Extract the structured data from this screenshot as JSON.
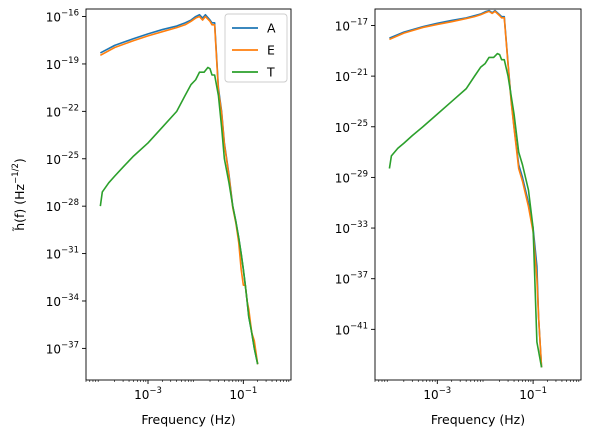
{
  "chart_data": [
    {
      "type": "line",
      "panel": "left",
      "x_scale": "log",
      "y_scale": "log",
      "xlim": [
        5e-05,
        1
      ],
      "ylim": [
        1e-39,
        3e-16
      ],
      "xlabel": "Frequency (Hz)",
      "ylabel_parts": {
        "main": "h̃(f) (Hz",
        "sup": "−1/2",
        "close": ")"
      },
      "x_ticks": [
        {
          "base": "10",
          "exp": "−3",
          "value": 0.001
        },
        {
          "base": "10",
          "exp": "−1",
          "value": 0.1
        }
      ],
      "y_ticks": [
        {
          "base": "10",
          "exp": "−16",
          "value": 1e-16
        },
        {
          "base": "10",
          "exp": "−19",
          "value": 1e-19
        },
        {
          "base": "10",
          "exp": "−22",
          "value": 1e-22
        },
        {
          "base": "10",
          "exp": "−25",
          "value": 1e-25
        },
        {
          "base": "10",
          "exp": "−28",
          "value": 1e-28
        },
        {
          "base": "10",
          "exp": "−31",
          "value": 1e-31
        },
        {
          "base": "10",
          "exp": "−34",
          "value": 1e-34
        },
        {
          "base": "10",
          "exp": "−37",
          "value": 1e-37
        }
      ],
      "legend": {
        "placement": "top-right",
        "entries": [
          "A",
          "E",
          "T"
        ]
      },
      "grid": false,
      "series": [
        {
          "name": "A",
          "color": "#1f77b4",
          "x": [
            0.0001,
            0.0002,
            0.0005,
            0.001,
            0.002,
            0.004,
            0.006,
            0.008,
            0.01,
            0.012,
            0.014,
            0.016,
            0.02,
            0.022,
            0.025,
            0.03,
            0.035,
            0.04,
            0.05,
            0.06,
            0.07,
            0.08,
            0.09,
            0.1,
            0.11,
            0.12,
            0.13,
            0.15,
            0.17,
            0.2
          ],
          "y": [
            5e-19,
            1.5e-18,
            4e-18,
            8e-18,
            1.5e-17,
            2.5e-17,
            4e-17,
            6e-17,
            1e-16,
            1.3e-16,
            8e-17,
            1.3e-16,
            6e-17,
            4e-17,
            4e-17,
            3e-21,
            1e-22,
            1e-24,
            1e-26,
            1e-28,
            1e-29,
            1e-30,
            1e-31,
            1e-32,
            1e-33,
            1e-34,
            1e-35,
            1e-36,
            1e-37,
            1e-38
          ]
        },
        {
          "name": "E",
          "color": "#ff7f0e",
          "x": [
            0.0001,
            0.0002,
            0.0005,
            0.001,
            0.002,
            0.004,
            0.006,
            0.008,
            0.01,
            0.012,
            0.014,
            0.016,
            0.02,
            0.022,
            0.025,
            0.03,
            0.035,
            0.04,
            0.05,
            0.06,
            0.07,
            0.08,
            0.09,
            0.1,
            0.11,
            0.12,
            0.13,
            0.15,
            0.17,
            0.2
          ],
          "y": [
            3.5e-19,
            1.1e-18,
            3e-18,
            6e-18,
            1.1e-17,
            2e-17,
            3e-17,
            5e-17,
            8e-17,
            1e-16,
            6e-17,
            1e-16,
            5e-17,
            3e-17,
            3e-17,
            2e-21,
            8e-23,
            8e-25,
            8e-27,
            8e-29,
            8e-30,
            5e-31,
            1e-32,
            1e-33,
            1e-33,
            1e-34,
            3e-35,
            1e-36,
            3e-37,
            1e-38
          ]
        },
        {
          "name": "T",
          "color": "#2ca02c",
          "x": [
            0.0001,
            0.00011,
            0.00015,
            0.0002,
            0.0003,
            0.0005,
            0.001,
            0.002,
            0.004,
            0.006,
            0.008,
            0.01,
            0.012,
            0.015,
            0.018,
            0.02,
            0.022,
            0.025,
            0.03,
            0.035,
            0.04,
            0.05,
            0.06,
            0.07,
            0.08,
            0.09,
            0.1,
            0.11,
            0.12,
            0.13,
            0.15,
            0.17,
            0.2
          ],
          "y": [
            1e-28,
            8e-28,
            3e-27,
            8e-27,
            3e-26,
            1.5e-25,
            1e-24,
            1e-23,
            1e-22,
            1e-21,
            5e-21,
            1e-20,
            3e-20,
            3e-20,
            6e-20,
            5e-20,
            2e-20,
            2e-20,
            1e-21,
            1e-23,
            1e-25,
            3e-27,
            1e-28,
            1e-29,
            1e-30,
            1e-31,
            1e-32,
            1e-33,
            1e-34,
            1e-35,
            1e-36,
            1e-37,
            1e-38
          ]
        }
      ]
    },
    {
      "type": "line",
      "panel": "right",
      "x_scale": "log",
      "y_scale": "log",
      "xlim": [
        5e-05,
        1
      ],
      "ylim": [
        1e-45,
        2e-16
      ],
      "xlabel": "Frequency (Hz)",
      "x_ticks": [
        {
          "base": "10",
          "exp": "−3",
          "value": 0.001
        },
        {
          "base": "10",
          "exp": "−1",
          "value": 0.1
        }
      ],
      "y_ticks": [
        {
          "base": "10",
          "exp": "−17",
          "value": 1e-17
        },
        {
          "base": "10",
          "exp": "−21",
          "value": 1e-21
        },
        {
          "base": "10",
          "exp": "−25",
          "value": 1e-25
        },
        {
          "base": "10",
          "exp": "−29",
          "value": 1e-29
        },
        {
          "base": "10",
          "exp": "−33",
          "value": 1e-33
        },
        {
          "base": "10",
          "exp": "−37",
          "value": 1e-37
        },
        {
          "base": "10",
          "exp": "−41",
          "value": 1e-41
        }
      ],
      "grid": false,
      "series": [
        {
          "name": "A",
          "color": "#1f77b4",
          "x": [
            0.0001,
            0.0002,
            0.0005,
            0.001,
            0.002,
            0.004,
            0.006,
            0.008,
            0.01,
            0.012,
            0.014,
            0.016,
            0.02,
            0.022,
            0.025,
            0.03,
            0.035,
            0.04,
            0.05,
            0.06,
            0.08,
            0.1,
            0.12,
            0.13,
            0.15
          ],
          "y": [
            1e-18,
            3e-18,
            8e-18,
            1.5e-17,
            2.5e-17,
            4e-17,
            6e-17,
            8e-17,
            1.2e-16,
            1.5e-16,
            1e-16,
            1.5e-16,
            7e-17,
            5e-17,
            5e-17,
            1e-20,
            1e-23,
            1e-25,
            1e-28,
            1e-29,
            1e-31,
            1e-33,
            1e-36,
            1e-40,
            1e-44
          ]
        },
        {
          "name": "E",
          "color": "#ff7f0e",
          "x": [
            0.0001,
            0.0002,
            0.0005,
            0.001,
            0.002,
            0.004,
            0.006,
            0.008,
            0.01,
            0.012,
            0.014,
            0.016,
            0.02,
            0.022,
            0.025,
            0.03,
            0.035,
            0.04,
            0.05,
            0.06,
            0.08,
            0.1,
            0.12,
            0.13,
            0.15
          ],
          "y": [
            8e-19,
            2.5e-18,
            7e-18,
            1.2e-17,
            2e-17,
            3.5e-17,
            5e-17,
            7e-17,
            1e-16,
            1.3e-16,
            9e-17,
            1.3e-16,
            6e-17,
            4e-17,
            4e-17,
            8e-21,
            8e-24,
            8e-26,
            5e-29,
            5e-30,
            5e-32,
            5e-34,
            1e-37,
            1e-40,
            1e-44
          ]
        },
        {
          "name": "T",
          "color": "#2ca02c",
          "x": [
            0.0001,
            0.00011,
            0.00015,
            0.0002,
            0.0003,
            0.0005,
            0.001,
            0.002,
            0.004,
            0.006,
            0.008,
            0.01,
            0.012,
            0.015,
            0.018,
            0.02,
            0.022,
            0.025,
            0.03,
            0.04,
            0.05,
            0.06,
            0.08,
            0.1,
            0.12,
            0.15
          ],
          "y": [
            5e-29,
            5e-28,
            2e-27,
            5e-27,
            2e-26,
            1e-25,
            1e-24,
            1e-23,
            1e-22,
            1e-21,
            5e-21,
            1e-20,
            3e-20,
            3e-20,
            6e-20,
            5e-20,
            2e-20,
            2e-20,
            1e-21,
            1e-24,
            1e-27,
            1e-28,
            1e-30,
            1e-33,
            1e-42,
            1e-44
          ]
        }
      ]
    }
  ]
}
